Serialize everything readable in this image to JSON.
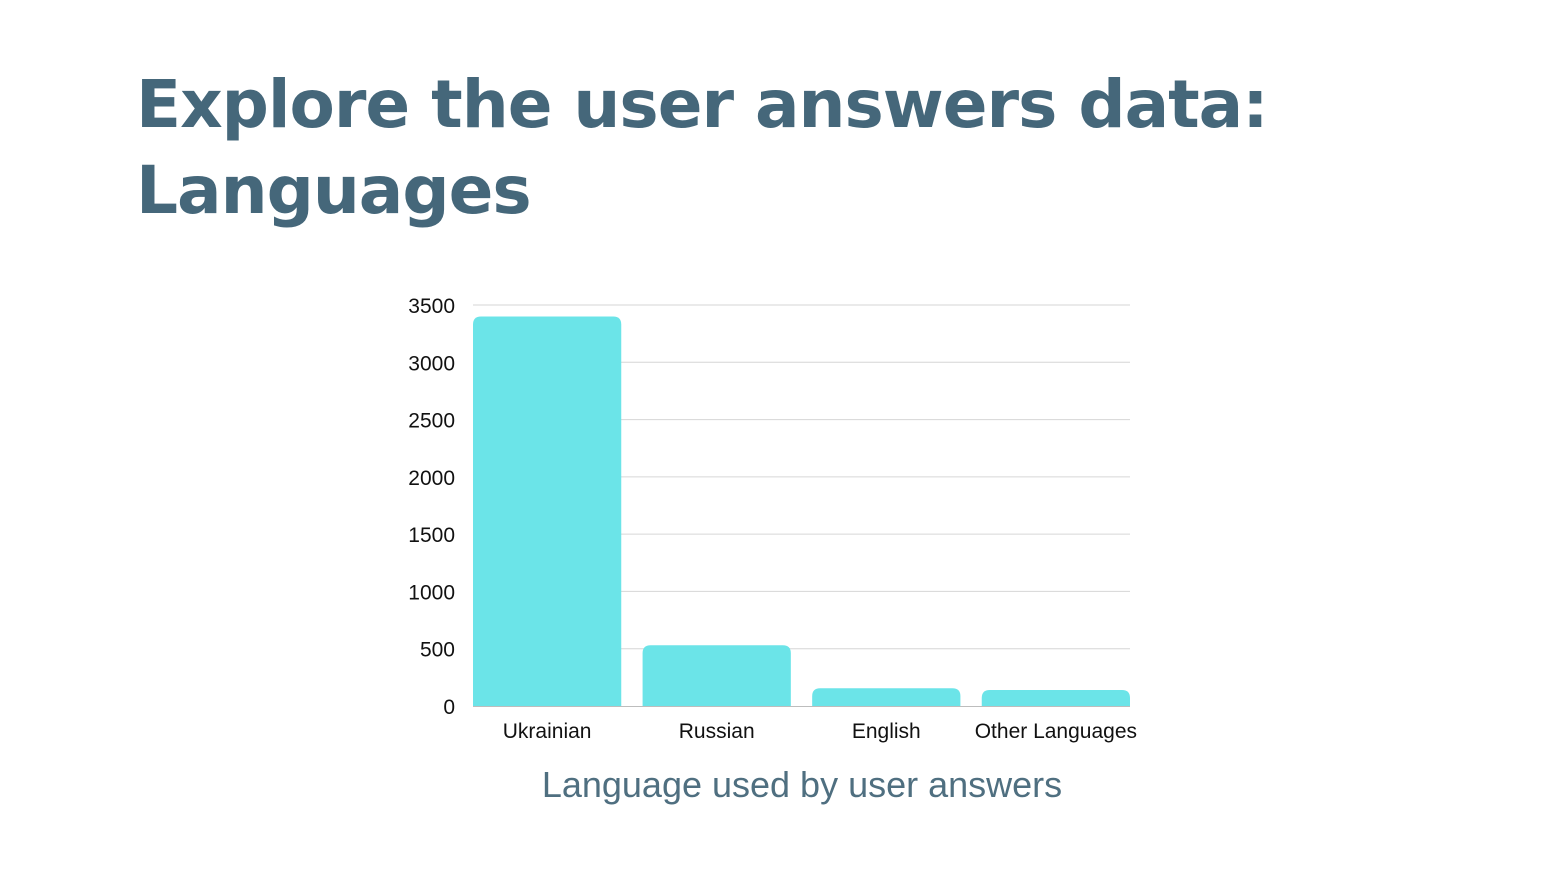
{
  "title": "Explore the user answers data: Languages",
  "chart_data": {
    "type": "bar",
    "categories": [
      "Ukrainian",
      "Russian",
      "English",
      "Other Languages"
    ],
    "values": [
      3400,
      530,
      155,
      140
    ],
    "xlabel": "Language used by user answers",
    "ylabel": "",
    "ylim": [
      0,
      3500
    ],
    "yticks": [
      0,
      500,
      1000,
      1500,
      2000,
      2500,
      3000,
      3500
    ],
    "grid": true,
    "legend": "none",
    "bar_color": "#6be4e8",
    "grid_color": "#d6d6d6"
  }
}
